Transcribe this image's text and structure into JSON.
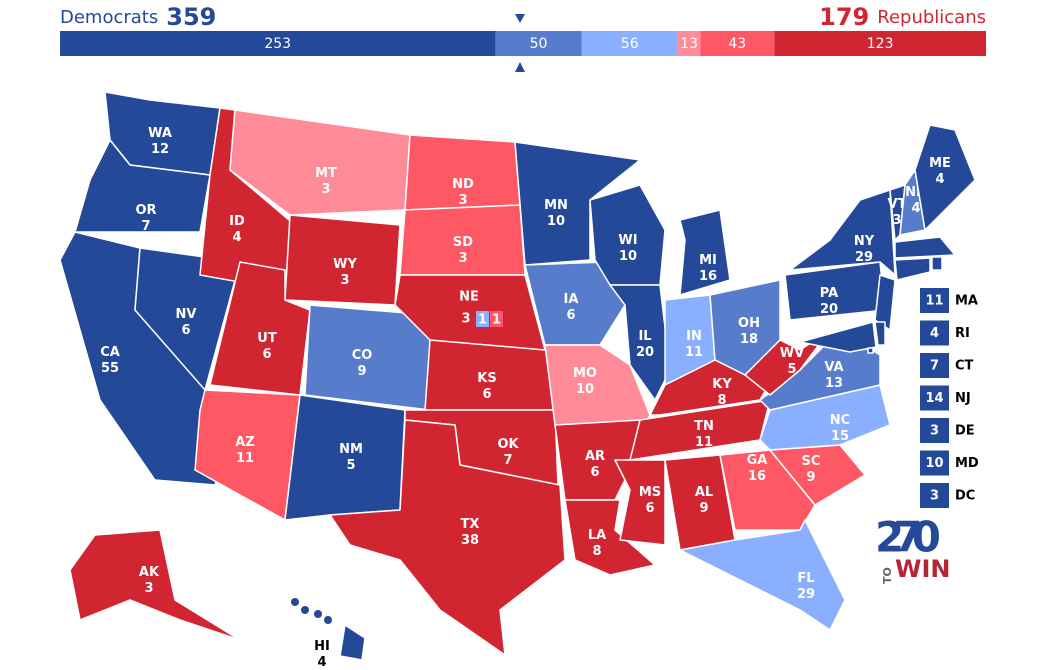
{
  "header": {
    "dem_label": "Democrats",
    "dem_total": 359,
    "rep_total": 179,
    "rep_label": "Republicans",
    "dem_color": "#244999",
    "rep_color": "#d22532"
  },
  "bar": {
    "segments": [
      {
        "value": 253,
        "color": "#244999"
      },
      {
        "value": 50,
        "color": "#577ccc"
      },
      {
        "value": 56,
        "color": "#8aafff"
      },
      {
        "value": 13,
        "color": "#ff8b98"
      },
      {
        "value": 43,
        "color": "#ff5865"
      },
      {
        "value": 123,
        "color": "#d22532"
      }
    ]
  },
  "states": [
    {
      "abbr": "WA",
      "votes": 12,
      "color": "#244999"
    },
    {
      "abbr": "OR",
      "votes": 7,
      "color": "#244999"
    },
    {
      "abbr": "CA",
      "votes": 55,
      "color": "#244999"
    },
    {
      "abbr": "NV",
      "votes": 6,
      "color": "#244999"
    },
    {
      "abbr": "ID",
      "votes": 4,
      "color": "#d22532"
    },
    {
      "abbr": "MT",
      "votes": 3,
      "color": "#ff8b98"
    },
    {
      "abbr": "WY",
      "votes": 3,
      "color": "#d22532"
    },
    {
      "abbr": "UT",
      "votes": 6,
      "color": "#d22532"
    },
    {
      "abbr": "AZ",
      "votes": 11,
      "color": "#ff5865"
    },
    {
      "abbr": "CO",
      "votes": 9,
      "color": "#577ccc"
    },
    {
      "abbr": "NM",
      "votes": 5,
      "color": "#244999"
    },
    {
      "abbr": "ND",
      "votes": 3,
      "color": "#ff5865"
    },
    {
      "abbr": "SD",
      "votes": 3,
      "color": "#ff5865"
    },
    {
      "abbr": "KS",
      "votes": 6,
      "color": "#d22532"
    },
    {
      "abbr": "OK",
      "votes": 7,
      "color": "#d22532"
    },
    {
      "abbr": "TX",
      "votes": 38,
      "color": "#d22532"
    },
    {
      "abbr": "MN",
      "votes": 10,
      "color": "#244999"
    },
    {
      "abbr": "IA",
      "votes": 6,
      "color": "#577ccc"
    },
    {
      "abbr": "MO",
      "votes": 10,
      "color": "#ff8b98"
    },
    {
      "abbr": "AR",
      "votes": 6,
      "color": "#d22532"
    },
    {
      "abbr": "LA",
      "votes": 8,
      "color": "#d22532"
    },
    {
      "abbr": "WI",
      "votes": 10,
      "color": "#244999"
    },
    {
      "abbr": "IL",
      "votes": 20,
      "color": "#244999"
    },
    {
      "abbr": "MI",
      "votes": 16,
      "color": "#244999"
    },
    {
      "abbr": "IN",
      "votes": 11,
      "color": "#8aafff"
    },
    {
      "abbr": "OH",
      "votes": 18,
      "color": "#577ccc"
    },
    {
      "abbr": "KY",
      "votes": 8,
      "color": "#d22532"
    },
    {
      "abbr": "TN",
      "votes": 11,
      "color": "#d22532"
    },
    {
      "abbr": "MS",
      "votes": 6,
      "color": "#d22532"
    },
    {
      "abbr": "AL",
      "votes": 9,
      "color": "#d22532"
    },
    {
      "abbr": "GA",
      "votes": 16,
      "color": "#ff5865"
    },
    {
      "abbr": "FL",
      "votes": 29,
      "color": "#8aafff"
    },
    {
      "abbr": "SC",
      "votes": 9,
      "color": "#ff5865"
    },
    {
      "abbr": "NC",
      "votes": 15,
      "color": "#8aafff"
    },
    {
      "abbr": "VA",
      "votes": 13,
      "color": "#577ccc"
    },
    {
      "abbr": "WV",
      "votes": 5,
      "color": "#d22532"
    },
    {
      "abbr": "PA",
      "votes": 20,
      "color": "#244999"
    },
    {
      "abbr": "NY",
      "votes": 29,
      "color": "#244999"
    },
    {
      "abbr": "VT",
      "votes": 3,
      "color": "#244999"
    },
    {
      "abbr": "NH",
      "votes": 4,
      "color": "#577ccc"
    },
    {
      "abbr": "ME",
      "votes": 4,
      "color": "#244999"
    },
    {
      "abbr": "AK",
      "votes": 3,
      "color": "#d22532"
    },
    {
      "abbr": "HI",
      "votes": 4,
      "color": "#244999"
    }
  ],
  "nebraska": {
    "abbr": "NE",
    "votes": 3,
    "color": "#d22532",
    "districts": [
      {
        "votes": 1,
        "color": "#8aafff"
      },
      {
        "votes": 1,
        "color": "#ff5865"
      }
    ]
  },
  "small_states": [
    {
      "abbr": "MA",
      "votes": 11,
      "color": "#244999"
    },
    {
      "abbr": "RI",
      "votes": 4,
      "color": "#244999"
    },
    {
      "abbr": "CT",
      "votes": 7,
      "color": "#244999"
    },
    {
      "abbr": "NJ",
      "votes": 14,
      "color": "#244999"
    },
    {
      "abbr": "DE",
      "votes": 3,
      "color": "#244999"
    },
    {
      "abbr": "MD",
      "votes": 10,
      "color": "#244999"
    },
    {
      "abbr": "DC",
      "votes": 3,
      "color": "#244999"
    }
  ],
  "logo": {
    "number": "270",
    "to": "TO",
    "win": "WIN"
  }
}
